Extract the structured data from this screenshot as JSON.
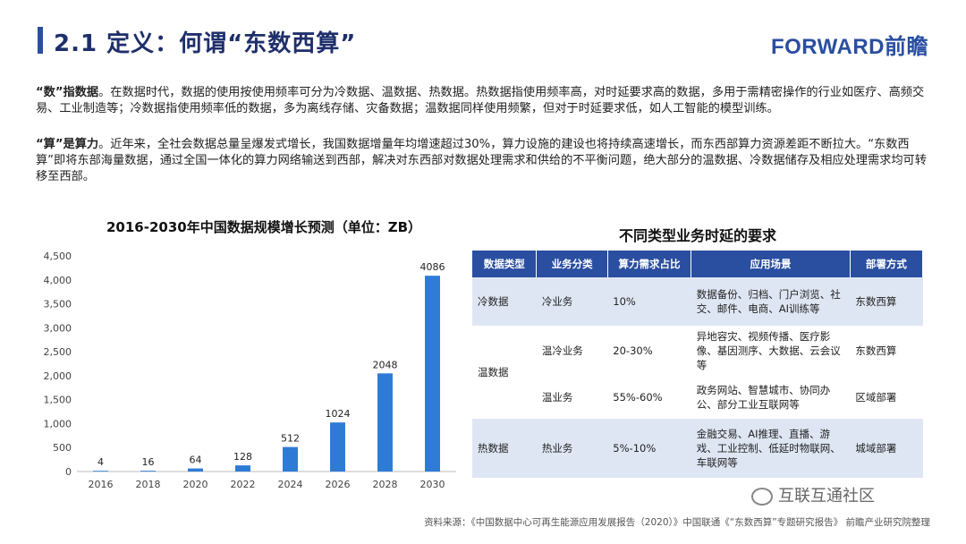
{
  "header": {
    "title": "2.1 定义：何谓“东数西算”",
    "logo": "FORWARD前瞻"
  },
  "paragraphs": [
    {
      "lead": "“数”指数据",
      "text": "。在数据时代，数据的使用按使用频率可分为冷数据、温数据、热数据。热数据指使用频率高，对时延要求高的数据，多用于需精密操作的行业如医疗、高频交易、工业制造等；冷数据指使用频率低的数据，多为离线存储、灾备数据；温数据同样使用频繁，但对于时延要求低，如人工智能的模型训练。"
    },
    {
      "lead": "“算”是算力",
      "text": "。近年来，全社会数据总量呈爆发式增长，我国数据增量年均增速超过30%，算力设施的建设也将持续高速增长，而东西部算力资源差距不断拉大。“东数西算”即将东部海量数据，通过全国一体化的算力网络输送到西部，解决对东西部对数据处理需求和供给的不平衡问题，绝大部分的温数据、冷数据储存及相应处理需求均可转移至西部。"
    }
  ],
  "chart_data": {
    "type": "bar",
    "title": "2016-2030年中国数据规模增长预测（单位：ZB）",
    "categories": [
      "2016",
      "2018",
      "2020",
      "2022",
      "2024",
      "2026",
      "2028",
      "2030"
    ],
    "values": [
      4,
      16,
      64,
      128,
      512,
      1024,
      2048,
      4086
    ],
    "ylim": [
      0,
      4500
    ],
    "yticks": [
      "0",
      "500",
      "1,000",
      "1,500",
      "2,000",
      "2,500",
      "3,000",
      "3,500",
      "4,000",
      "4,500"
    ],
    "grid": false,
    "bar_color": "#2e7bd6"
  },
  "table": {
    "title": "不同类型业务时延的要求",
    "headers": [
      "数据类型",
      "业务分类",
      "算力需求占比",
      "应用场景",
      "部署方式"
    ],
    "rows": [
      {
        "type": "冷数据",
        "service": "冷业务",
        "ratio": "10%",
        "scene": "数据备份、归档、门户浏览、社交、邮件、电商、AI训练等",
        "deploy": "东数西算"
      },
      {
        "type": "温数据",
        "service": "温冷业务",
        "ratio": "20-30%",
        "scene": "异地容灾、视频传播、医疗影像、基因测序、大数据、云会议等",
        "deploy": "东数西算"
      },
      {
        "type": "",
        "service": "温业务",
        "ratio": "55%-60%",
        "scene": "政务网站、智慧城市、协同办公、部分工业互联网等",
        "deploy": "区域部署"
      },
      {
        "type": "热数据",
        "service": "热业务",
        "ratio": "5%-10%",
        "scene": "金融交易、AI推理、直播、游戏、工业控制、低延时物联网、车联网等",
        "deploy": "城域部署"
      }
    ]
  },
  "footer": "资料来源：《中国数据中心可再生能源应用发展报告（2020）》中国联通《“东数西算”专题研究报告》 前瞻产业研究院整理",
  "wechat": "互联互通社区"
}
